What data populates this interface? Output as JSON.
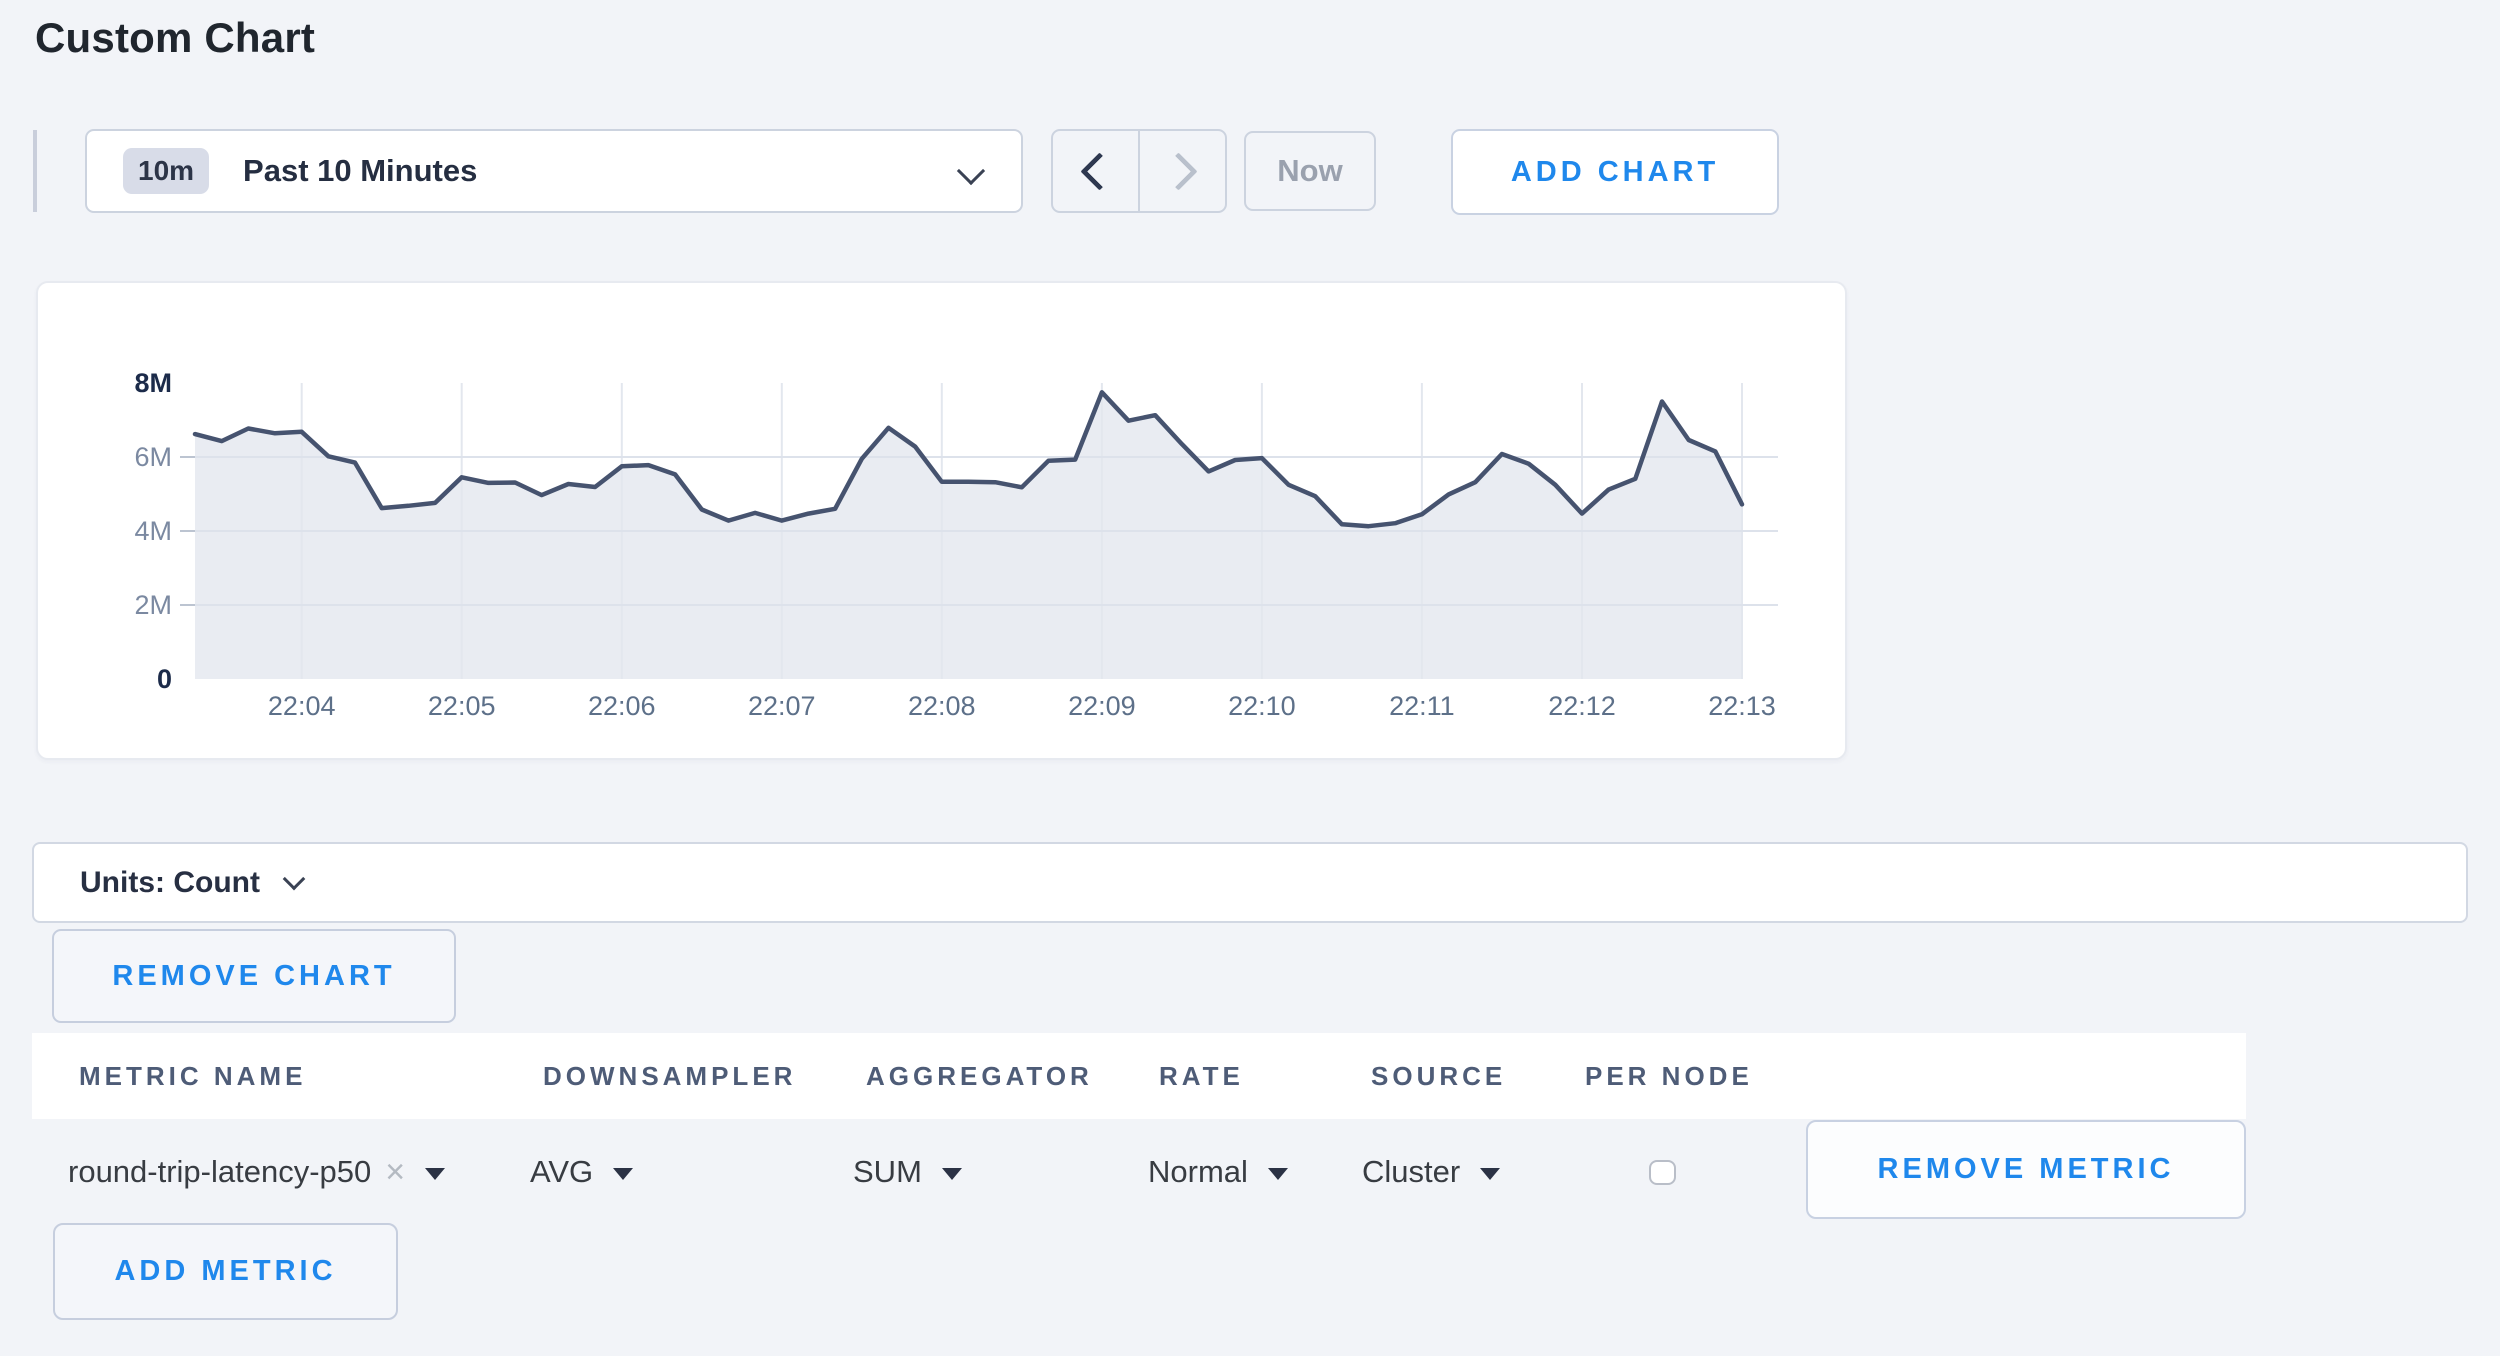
{
  "page_title": "Custom Chart",
  "controls": {
    "time_range": {
      "badge": "10m",
      "label": "Past 10 Minutes"
    },
    "now_label": "Now",
    "add_chart_label": "ADD CHART"
  },
  "icons": {
    "remove_x": "×"
  },
  "accent_color": "#1f88ec",
  "chart_data": {
    "type": "area",
    "title": "",
    "xlabel": "",
    "ylabel": "Count",
    "ylim_millions": [
      0,
      8
    ],
    "grid": true,
    "legend": "none",
    "line_color": "#46536f",
    "fill_color": "#e9ecf2",
    "x": [
      "22:03:20",
      "22:03:30",
      "22:03:40",
      "22:03:50",
      "22:04:00",
      "22:04:10",
      "22:04:20",
      "22:04:30",
      "22:04:40",
      "22:04:50",
      "22:05:00",
      "22:05:10",
      "22:05:20",
      "22:05:30",
      "22:05:40",
      "22:05:50",
      "22:06:00",
      "22:06:10",
      "22:06:20",
      "22:06:30",
      "22:06:40",
      "22:06:50",
      "22:07:00",
      "22:07:10",
      "22:07:20",
      "22:07:30",
      "22:07:40",
      "22:07:50",
      "22:08:00",
      "22:08:10",
      "22:08:20",
      "22:08:30",
      "22:08:40",
      "22:08:50",
      "22:09:00",
      "22:09:10",
      "22:09:20",
      "22:09:30",
      "22:09:40",
      "22:09:50",
      "22:10:00",
      "22:10:10",
      "22:10:20",
      "22:10:30",
      "22:10:40",
      "22:10:50",
      "22:11:00",
      "22:11:10",
      "22:11:20",
      "22:11:30",
      "22:11:40",
      "22:11:50",
      "22:12:00",
      "22:12:10",
      "22:12:20",
      "22:12:30",
      "22:12:40",
      "22:12:50",
      "22:13:00"
    ],
    "values_millions": [
      6.62,
      6.43,
      6.77,
      6.64,
      6.68,
      6.02,
      5.85,
      4.62,
      4.68,
      4.76,
      5.45,
      5.3,
      5.31,
      4.97,
      5.27,
      5.19,
      5.75,
      5.78,
      5.53,
      4.58,
      4.28,
      4.49,
      4.28,
      4.47,
      4.6,
      5.95,
      6.79,
      6.28,
      5.33,
      5.33,
      5.32,
      5.18,
      5.9,
      5.93,
      7.75,
      6.98,
      7.13,
      6.35,
      5.61,
      5.92,
      5.97,
      5.25,
      4.94,
      4.18,
      4.13,
      4.21,
      4.45,
      4.99,
      5.32,
      6.08,
      5.82,
      5.25,
      4.47,
      5.12,
      5.41,
      7.5,
      6.46,
      6.15,
      4.72
    ],
    "xticks": [
      "22:04",
      "22:05",
      "22:06",
      "22:07",
      "22:08",
      "22:09",
      "22:10",
      "22:11",
      "22:12",
      "22:13"
    ],
    "yticks": [
      {
        "label": "8M",
        "value": 8,
        "strong": true
      },
      {
        "label": "6M",
        "value": 6,
        "strong": false
      },
      {
        "label": "4M",
        "value": 4,
        "strong": false
      },
      {
        "label": "2M",
        "value": 2,
        "strong": false
      },
      {
        "label": "0",
        "value": 0,
        "strong": true
      }
    ]
  },
  "units_bar": {
    "label": "Units: Count"
  },
  "remove_chart_label": "REMOVE CHART",
  "metrics_table": {
    "headers": [
      "METRIC NAME",
      "DOWNSAMPLER",
      "AGGREGATOR",
      "RATE",
      "SOURCE",
      "PER NODE"
    ],
    "row": {
      "metric_name": "round-trip-latency-p50",
      "downsampler": "AVG",
      "aggregator": "SUM",
      "rate": "Normal",
      "source": "Cluster",
      "per_node_checked": false,
      "remove_label": "REMOVE METRIC"
    }
  },
  "add_metric_label": "ADD METRIC"
}
